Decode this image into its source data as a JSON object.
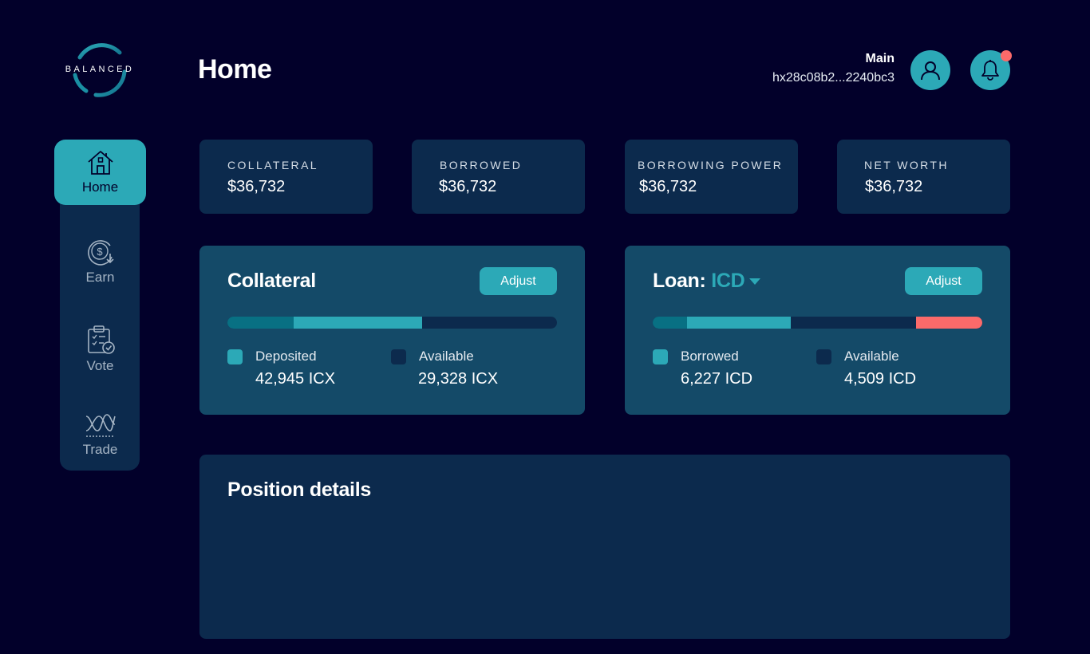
{
  "logo": {
    "text": "BALANCED"
  },
  "header": {
    "title": "Home",
    "wallet_name": "Main",
    "wallet_address": "hx28c08b2...2240bc3"
  },
  "nav": [
    {
      "label": "Home",
      "icon": "home-icon",
      "active": true
    },
    {
      "label": "Earn",
      "icon": "earn-icon",
      "active": false
    },
    {
      "label": "Vote",
      "icon": "vote-icon",
      "active": false
    },
    {
      "label": "Trade",
      "icon": "trade-icon",
      "active": false
    }
  ],
  "stats": [
    {
      "label": "COLLATERAL",
      "value": "$36,732"
    },
    {
      "label": "BORROWED",
      "value": "$36,732"
    },
    {
      "label": "BORROWING POWER",
      "value": "$36,732"
    },
    {
      "label": "NET WORTH",
      "value": "$36,732"
    }
  ],
  "collateral": {
    "title": "Collateral",
    "adjust_label": "Adjust",
    "deposited_label": "Deposited",
    "deposited_value": "42,945 ICX",
    "available_label": "Available",
    "available_value": "29,328 ICX",
    "bar_segments": [
      {
        "fraction": 0.2,
        "color": "#087083"
      },
      {
        "fraction": 0.39,
        "color": "#2ca9b7"
      }
    ]
  },
  "loan": {
    "title_prefix": "Loan:",
    "currency": "ICD",
    "adjust_label": "Adjust",
    "borrowed_label": "Borrowed",
    "borrowed_value": "6,227 ICD",
    "available_label": "Available",
    "available_value": "4,509 ICD",
    "bar_segments": [
      {
        "fraction": 0.105,
        "color": "#087083"
      },
      {
        "fraction": 0.315,
        "color": "#2ca9b7"
      }
    ],
    "limit_fraction": 0.2,
    "limit_color": "#fb6a6a"
  },
  "position_details": {
    "title": "Position details"
  },
  "colors": {
    "background": "#02002a",
    "panel_dark": "#0c2a4d",
    "panel_light": "#144a68",
    "accent": "#2ca9b7",
    "alert": "#fb6a6a"
  }
}
